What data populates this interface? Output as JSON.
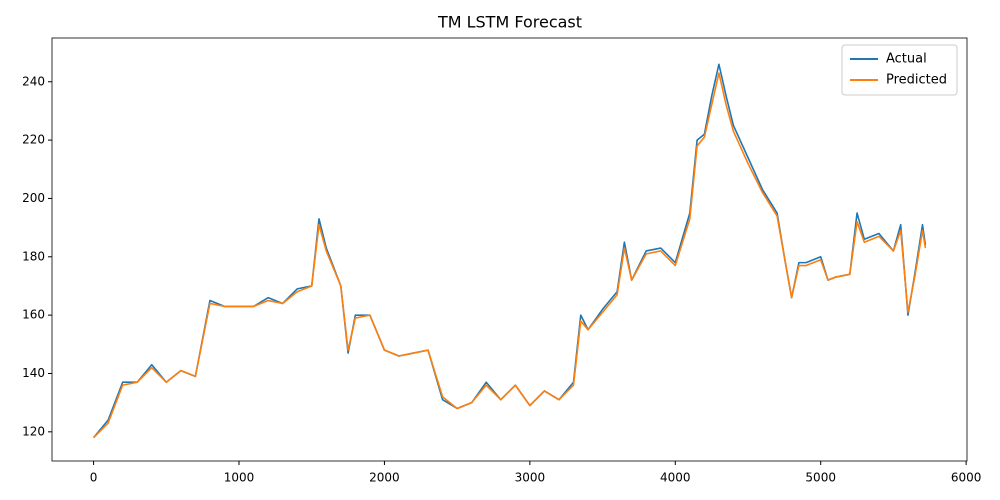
{
  "chart_data": {
    "type": "line",
    "title": "TM LSTM Forecast",
    "x": [
      0,
      100,
      200,
      300,
      400,
      500,
      600,
      700,
      800,
      900,
      1000,
      1100,
      1200,
      1300,
      1400,
      1500,
      1550,
      1600,
      1700,
      1750,
      1800,
      1900,
      2000,
      2100,
      2200,
      2300,
      2400,
      2500,
      2600,
      2700,
      2800,
      2900,
      3000,
      3100,
      3200,
      3300,
      3350,
      3400,
      3500,
      3600,
      3650,
      3700,
      3800,
      3900,
      4000,
      4100,
      4150,
      4200,
      4250,
      4300,
      4350,
      4400,
      4500,
      4600,
      4700,
      4750,
      4800,
      4850,
      4900,
      5000,
      5050,
      5100,
      5200,
      5250,
      5300,
      5400,
      5500,
      5550,
      5600,
      5650,
      5700,
      5720
    ],
    "series": [
      {
        "name": "Actual",
        "color": "#1f77b4",
        "values": [
          118,
          124,
          137,
          137,
          143,
          137,
          141,
          139,
          165,
          163,
          163,
          163,
          166,
          164,
          169,
          170,
          193,
          183,
          170,
          147,
          160,
          160,
          148,
          146,
          147,
          148,
          131,
          128,
          130,
          137,
          131,
          136,
          129,
          134,
          131,
          137,
          160,
          155,
          162,
          168,
          185,
          172,
          182,
          183,
          178,
          195,
          220,
          222,
          235,
          246,
          235,
          225,
          214,
          203,
          195,
          180,
          166,
          178,
          178,
          180,
          172,
          173,
          174,
          195,
          186,
          188,
          182,
          191,
          160,
          175,
          191,
          184
        ]
      },
      {
        "name": "Predicted",
        "color": "#ff7f0e",
        "values": [
          118,
          123,
          136,
          137,
          142,
          137,
          141,
          139,
          164,
          163,
          163,
          163,
          165,
          164,
          168,
          170,
          191,
          182,
          170,
          148,
          159,
          160,
          148,
          146,
          147,
          148,
          132,
          128,
          130,
          136,
          131,
          136,
          129,
          134,
          131,
          136,
          158,
          155,
          161,
          167,
          183,
          172,
          181,
          182,
          177,
          193,
          218,
          221,
          232,
          243,
          232,
          223,
          212,
          202,
          194,
          180,
          166,
          177,
          177,
          179,
          172,
          173,
          174,
          192,
          185,
          187,
          182,
          189,
          161,
          174,
          189,
          183
        ]
      }
    ],
    "xlim": [
      -286,
      6006
    ],
    "ylim": [
      110,
      255
    ],
    "xticks": [
      0,
      1000,
      2000,
      3000,
      4000,
      5000,
      6000
    ],
    "yticks": [
      120,
      140,
      160,
      180,
      200,
      220,
      240
    ],
    "grid": false,
    "legend": "upper right"
  }
}
